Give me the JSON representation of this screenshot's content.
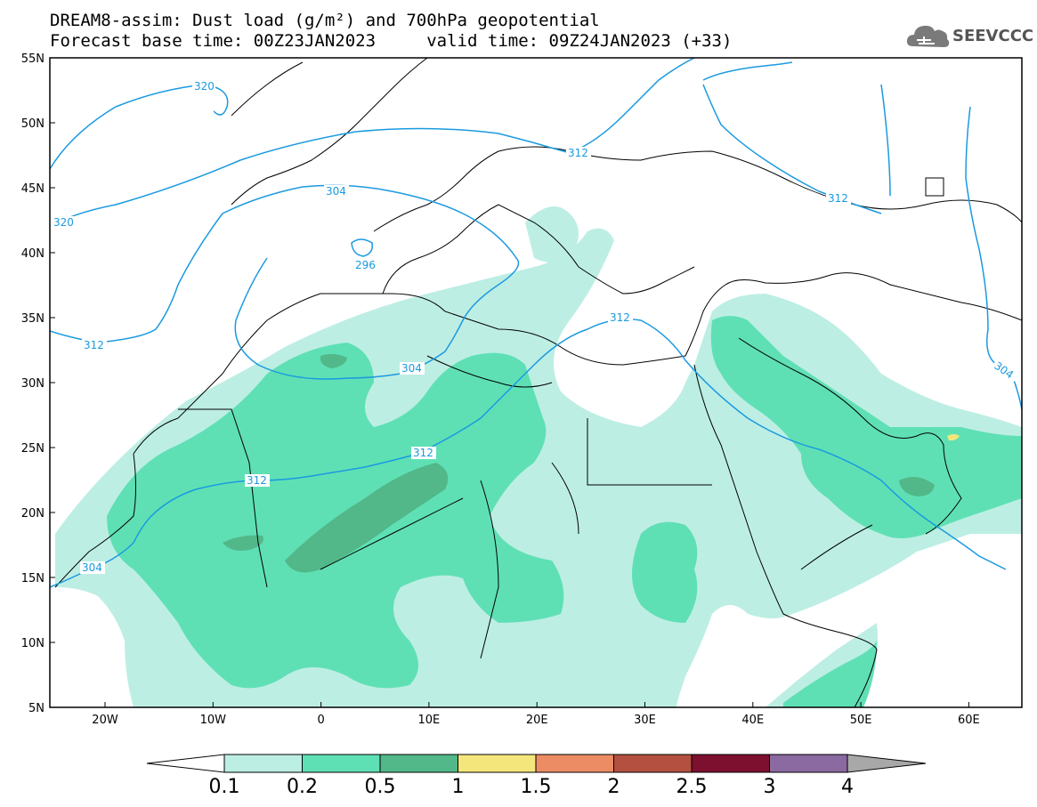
{
  "title": {
    "line1": "DREAM8-assim: Dust load (g/m²) and 700hPa geopotential",
    "line2": "Forecast base time: 00Z23JAN2023     valid time: 09Z24JAN2023 (+33)"
  },
  "logo": {
    "text": "SEEVCCC",
    "icon": "cloud-icon"
  },
  "map": {
    "lat_labels": [
      "55N",
      "50N",
      "45N",
      "40N",
      "35N",
      "30N",
      "25N",
      "20N",
      "15N",
      "10N",
      "5N"
    ],
    "lon_labels": [
      "20W",
      "10W",
      "0",
      "10E",
      "20E",
      "30E",
      "40E",
      "50E",
      "60E"
    ],
    "contour_color": "#1a9ae0",
    "contour_labels": [
      {
        "text": "320",
        "id": "c320a"
      },
      {
        "text": "320",
        "id": "c320b"
      },
      {
        "text": "312",
        "id": "c312a"
      },
      {
        "text": "304",
        "id": "c304a"
      },
      {
        "text": "296",
        "id": "c296"
      },
      {
        "text": "312",
        "id": "c312b"
      },
      {
        "text": "312",
        "id": "c312c"
      },
      {
        "text": "304",
        "id": "c304b"
      },
      {
        "text": "312",
        "id": "c312d"
      },
      {
        "text": "312",
        "id": "c312e"
      },
      {
        "text": "312",
        "id": "c312f"
      },
      {
        "text": "304",
        "id": "c304c"
      }
    ]
  },
  "colorbar": {
    "ticks": [
      "0.1",
      "0.2",
      "0.5",
      "1",
      "1.5",
      "2",
      "2.5",
      "3",
      "4"
    ],
    "colors": [
      "#ffffff",
      "#bdeee4",
      "#5fe0b4",
      "#52b889",
      "#f5e67c",
      "#eb8c64",
      "#b4503f",
      "#7d0f2f",
      "#8a6aa0",
      "#a8a8a8"
    ]
  }
}
